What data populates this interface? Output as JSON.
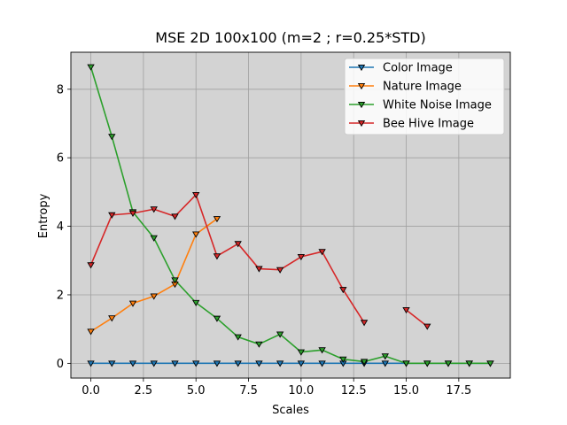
{
  "chart_data": {
    "type": "line",
    "title": "MSE 2D 100x100 (m=2 ; r=0.25*STD)",
    "xlabel": "Scales",
    "ylabel": "Entropy",
    "xlim": [
      -0.95,
      19.95
    ],
    "ylim": [
      -0.43,
      9.08
    ],
    "xticks": [
      0,
      2.5,
      5,
      7.5,
      10,
      12.5,
      15,
      17.5
    ],
    "xtick_labels": [
      "0.0",
      "2.5",
      "5.0",
      "7.5",
      "10.0",
      "12.5",
      "15.0",
      "17.5"
    ],
    "yticks": [
      0,
      2,
      4,
      6,
      8
    ],
    "ytick_labels": [
      "0",
      "2",
      "4",
      "6",
      "8"
    ],
    "grid": true,
    "background": "#d3d3d3",
    "legend_position": "top-right",
    "marker": "triangle-down",
    "series": [
      {
        "name": "Color Image",
        "color": "#1f77b4",
        "x": [
          0,
          1,
          2,
          3,
          4,
          5,
          6,
          7,
          8,
          9,
          10,
          11,
          12,
          13,
          14,
          15,
          16,
          17,
          18,
          19
        ],
        "y": [
          0,
          0,
          0,
          0,
          0,
          0,
          0,
          0,
          0,
          0,
          0,
          0,
          0,
          0,
          0,
          0,
          0,
          0,
          0,
          0
        ]
      },
      {
        "name": "Nature Image",
        "color": "#ff7f0e",
        "x": [
          0,
          1,
          2,
          3,
          4,
          5,
          6
        ],
        "y": [
          0.93,
          1.32,
          1.75,
          1.96,
          2.31,
          3.77,
          4.22
        ]
      },
      {
        "name": "White Noise Image",
        "color": "#2ca02c",
        "x": [
          0,
          1,
          2,
          3,
          4,
          5,
          6,
          7,
          8,
          9,
          10,
          11,
          12,
          13,
          14,
          15,
          16,
          17,
          18,
          19
        ],
        "y": [
          8.65,
          6.62,
          4.42,
          3.66,
          2.43,
          1.77,
          1.31,
          0.77,
          0.56,
          0.85,
          0.33,
          0.39,
          0.12,
          0.05,
          0.21,
          0.0,
          0.0,
          0.0,
          0.0,
          0.0
        ]
      },
      {
        "name": "Bee Hive Image",
        "color": "#d62728",
        "x": [
          0,
          1,
          2,
          3,
          4,
          5,
          6,
          7,
          8,
          9,
          10,
          11,
          12,
          13,
          null,
          15,
          16
        ],
        "y": [
          2.87,
          4.33,
          4.38,
          4.5,
          4.29,
          4.92,
          3.13,
          3.49,
          2.76,
          2.73,
          3.11,
          3.26,
          2.15,
          1.19,
          null,
          1.56,
          1.08
        ]
      }
    ]
  }
}
